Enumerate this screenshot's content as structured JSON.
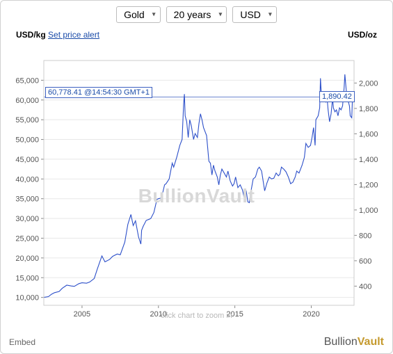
{
  "controls": {
    "metal": "Gold",
    "period": "20 years",
    "currency": "USD"
  },
  "header": {
    "left_unit": "USD/kg",
    "alert_link": "Set price alert",
    "right_unit": "USD/oz"
  },
  "current": {
    "price_kg": "60,778.41",
    "timestamp": "@14:54:30 GMT+1",
    "price_oz": "1,890.42"
  },
  "watermark": "BullionVault",
  "zoom_hint": "click chart to zoom in",
  "footer": {
    "embed": "Embed",
    "brand_a": "Bullion",
    "brand_b": "Vault"
  },
  "chart": {
    "type": "line",
    "background_color": "#ffffff",
    "border_color": "#cccccc",
    "grid_color": "#e8e8e8",
    "line_color": "#2c4fc9",
    "ref_line_color": "#3b5fc0",
    "line_width": 1.1,
    "left_axis": {
      "label_fontsize": 11,
      "ticks": [
        10000,
        15000,
        20000,
        25000,
        30000,
        35000,
        40000,
        45000,
        50000,
        55000,
        60000,
        65000
      ],
      "tick_labels": [
        "10,000",
        "15,000",
        "20,000",
        "25,000",
        "30,000",
        "35,000",
        "40,000",
        "45,000",
        "50,000",
        "55,000",
        "60,000",
        "65,000"
      ],
      "ymin": 8000,
      "ymax": 70000
    },
    "right_axis": {
      "ticks": [
        400,
        600,
        800,
        1000,
        1200,
        1400,
        1600,
        1800,
        2000
      ],
      "tick_labels": [
        "400",
        "600",
        "800",
        "1,000",
        "1,200",
        "1,400",
        "1,600",
        "1,800",
        "2,000"
      ],
      "ymin": 248.8,
      "ymax": 2177.3
    },
    "x_axis": {
      "ticks": [
        2005,
        2010,
        2015,
        2020
      ],
      "tick_labels": [
        "2005",
        "2010",
        "2015",
        "2020"
      ],
      "xmin": 2002.5,
      "xmax": 2022.8
    },
    "ref_line_value_kg": 60778.41,
    "series_kg": [
      [
        2002.5,
        10000
      ],
      [
        2002.8,
        10200
      ],
      [
        2003.0,
        10800
      ],
      [
        2003.2,
        11200
      ],
      [
        2003.5,
        11500
      ],
      [
        2003.7,
        12300
      ],
      [
        2004.0,
        13100
      ],
      [
        2004.3,
        12900
      ],
      [
        2004.5,
        12800
      ],
      [
        2004.8,
        13500
      ],
      [
        2005.0,
        13700
      ],
      [
        2005.3,
        13600
      ],
      [
        2005.5,
        13900
      ],
      [
        2005.8,
        14800
      ],
      [
        2006.0,
        17200
      ],
      [
        2006.3,
        20500
      ],
      [
        2006.5,
        19000
      ],
      [
        2006.8,
        19600
      ],
      [
        2007.0,
        20400
      ],
      [
        2007.3,
        21000
      ],
      [
        2007.5,
        20800
      ],
      [
        2007.8,
        24000
      ],
      [
        2008.0,
        28500
      ],
      [
        2008.2,
        31000
      ],
      [
        2008.35,
        28200
      ],
      [
        2008.5,
        29400
      ],
      [
        2008.7,
        25300
      ],
      [
        2008.85,
        23500
      ],
      [
        2008.9,
        27000
      ],
      [
        2009.0,
        28000
      ],
      [
        2009.2,
        29500
      ],
      [
        2009.4,
        29800
      ],
      [
        2009.5,
        30000
      ],
      [
        2009.7,
        31500
      ],
      [
        2009.9,
        34800
      ],
      [
        2010.0,
        35000
      ],
      [
        2010.2,
        35200
      ],
      [
        2010.4,
        38500
      ],
      [
        2010.5,
        38800
      ],
      [
        2010.7,
        40000
      ],
      [
        2010.9,
        44000
      ],
      [
        2011.0,
        43000
      ],
      [
        2011.2,
        45500
      ],
      [
        2011.4,
        48500
      ],
      [
        2011.55,
        50000
      ],
      [
        2011.65,
        59000
      ],
      [
        2011.7,
        61500
      ],
      [
        2011.75,
        56000
      ],
      [
        2011.85,
        54500
      ],
      [
        2011.95,
        50500
      ],
      [
        2012.05,
        55000
      ],
      [
        2012.15,
        53500
      ],
      [
        2012.3,
        50000
      ],
      [
        2012.4,
        51500
      ],
      [
        2012.55,
        50500
      ],
      [
        2012.65,
        54000
      ],
      [
        2012.75,
        56500
      ],
      [
        2012.85,
        55000
      ],
      [
        2012.95,
        53000
      ],
      [
        2013.05,
        52000
      ],
      [
        2013.15,
        51000
      ],
      [
        2013.3,
        44500
      ],
      [
        2013.4,
        44000
      ],
      [
        2013.5,
        41000
      ],
      [
        2013.6,
        43500
      ],
      [
        2013.7,
        42000
      ],
      [
        2013.85,
        40500
      ],
      [
        2013.95,
        38500
      ],
      [
        2014.05,
        41000
      ],
      [
        2014.15,
        42500
      ],
      [
        2014.3,
        41500
      ],
      [
        2014.45,
        40500
      ],
      [
        2014.55,
        42000
      ],
      [
        2014.7,
        39500
      ],
      [
        2014.85,
        38200
      ],
      [
        2014.95,
        38800
      ],
      [
        2015.05,
        40500
      ],
      [
        2015.2,
        37800
      ],
      [
        2015.35,
        38500
      ],
      [
        2015.5,
        37200
      ],
      [
        2015.6,
        35500
      ],
      [
        2015.75,
        36800
      ],
      [
        2015.85,
        34200
      ],
      [
        2015.95,
        34000
      ],
      [
        2016.05,
        36800
      ],
      [
        2016.2,
        40000
      ],
      [
        2016.35,
        40500
      ],
      [
        2016.5,
        42500
      ],
      [
        2016.6,
        43000
      ],
      [
        2016.75,
        42000
      ],
      [
        2016.85,
        39500
      ],
      [
        2016.95,
        37000
      ],
      [
        2017.1,
        39000
      ],
      [
        2017.25,
        40500
      ],
      [
        2017.4,
        40000
      ],
      [
        2017.55,
        40200
      ],
      [
        2017.7,
        41500
      ],
      [
        2017.85,
        40800
      ],
      [
        2017.95,
        41200
      ],
      [
        2018.05,
        43000
      ],
      [
        2018.2,
        42500
      ],
      [
        2018.35,
        41800
      ],
      [
        2018.5,
        40500
      ],
      [
        2018.65,
        38800
      ],
      [
        2018.8,
        39200
      ],
      [
        2018.95,
        40500
      ],
      [
        2019.05,
        42000
      ],
      [
        2019.2,
        41500
      ],
      [
        2019.4,
        43500
      ],
      [
        2019.55,
        45500
      ],
      [
        2019.65,
        49000
      ],
      [
        2019.8,
        48000
      ],
      [
        2019.95,
        48500
      ],
      [
        2020.05,
        50500
      ],
      [
        2020.15,
        53000
      ],
      [
        2020.25,
        48500
      ],
      [
        2020.3,
        55000
      ],
      [
        2020.45,
        56000
      ],
      [
        2020.55,
        58000
      ],
      [
        2020.6,
        65500
      ],
      [
        2020.65,
        62000
      ],
      [
        2020.75,
        61000
      ],
      [
        2020.85,
        60000
      ],
      [
        2020.95,
        59500
      ],
      [
        2021.0,
        62000
      ],
      [
        2021.1,
        57500
      ],
      [
        2021.2,
        54500
      ],
      [
        2021.3,
        56500
      ],
      [
        2021.4,
        60500
      ],
      [
        2021.45,
        58000
      ],
      [
        2021.55,
        57000
      ],
      [
        2021.65,
        57500
      ],
      [
        2021.75,
        56000
      ],
      [
        2021.85,
        58000
      ],
      [
        2021.95,
        57500
      ],
      [
        2022.05,
        58500
      ],
      [
        2022.15,
        63000
      ],
      [
        2022.2,
        66500
      ],
      [
        2022.3,
        62000
      ],
      [
        2022.4,
        60000
      ],
      [
        2022.5,
        58500
      ],
      [
        2022.55,
        56000
      ],
      [
        2022.65,
        55500
      ],
      [
        2022.7,
        60778
      ]
    ]
  }
}
